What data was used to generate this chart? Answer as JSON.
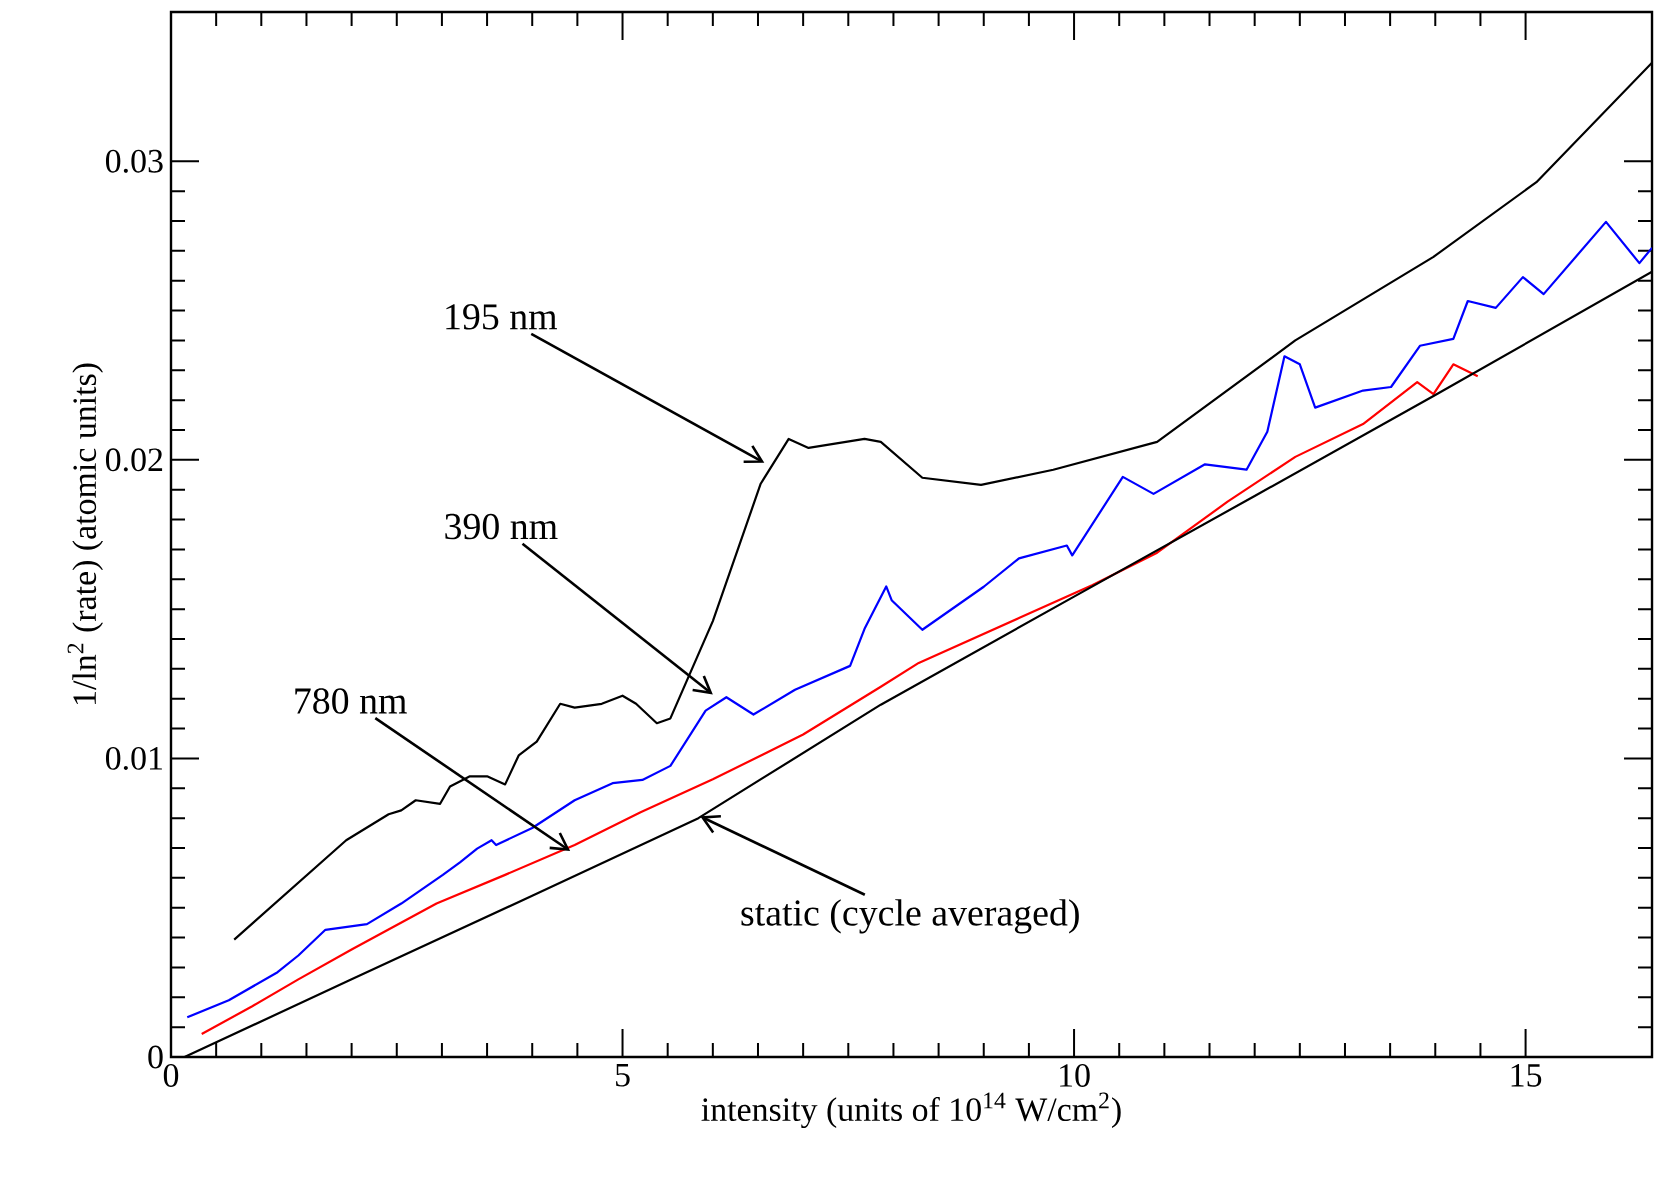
{
  "chart_data": {
    "type": "line",
    "xlabel": "intensity (units of 10$^{14}$ W/cm$^{2}$)",
    "ylabel": "1/ln$^{2}$ (rate)  (atomic units)",
    "xlim": [
      0,
      16.4
    ],
    "ylim": [
      0,
      0.035
    ],
    "xticks": [
      0,
      5,
      10,
      15
    ],
    "yticks": [
      0,
      0.01,
      0.02,
      0.03
    ],
    "grid": false,
    "marker": "none",
    "line_style": "solid",
    "series": [
      {
        "color": "#000000",
        "x": [
          0.7,
          1.94,
          2.41,
          2.55,
          2.71,
          2.98,
          3.09,
          3.31,
          3.5,
          3.7,
          3.85,
          4.05,
          4.31,
          4.47,
          4.77,
          5.0,
          5.15,
          5.38,
          5.53,
          6.0,
          6.53,
          6.84,
          7.06,
          7.68,
          7.86,
          8.32,
          8.97,
          9.77,
          10.92,
          12.45,
          13.98,
          15.12,
          16.4
        ],
        "values": [
          0.00393,
          0.00726,
          0.00813,
          0.00826,
          0.0086,
          0.00848,
          0.00906,
          0.0094,
          0.0094,
          0.00913,
          0.0101,
          0.01056,
          0.01183,
          0.0117,
          0.01183,
          0.0121,
          0.01183,
          0.01118,
          0.01134,
          0.0146,
          0.0192,
          0.0207,
          0.0204,
          0.0207,
          0.0206,
          0.0194,
          0.01916,
          0.01967,
          0.0206,
          0.024,
          0.0268,
          0.0293,
          0.0333
        ]
      },
      {
        "color": "#0000ff",
        "x": [
          0.18,
          0.64,
          1.18,
          1.41,
          1.71,
          2.17,
          2.55,
          3.01,
          3.2,
          3.39,
          3.55,
          3.6,
          4.0,
          4.47,
          4.89,
          5.22,
          5.53,
          5.92,
          6.15,
          6.45,
          6.91,
          7.52,
          7.68,
          7.92,
          7.98,
          8.32,
          9.0,
          9.39,
          9.92,
          9.98,
          10.54,
          10.88,
          11.45,
          11.91,
          12.14,
          12.33,
          12.5,
          12.67,
          13.2,
          13.51,
          13.83,
          14.2,
          14.36,
          14.67,
          14.97,
          15.2,
          15.89,
          16.26,
          16.4
        ],
        "values": [
          0.00133,
          0.0019,
          0.00284,
          0.0034,
          0.00426,
          0.00445,
          0.00514,
          0.0061,
          0.00652,
          0.00698,
          0.00726,
          0.0071,
          0.00767,
          0.0086,
          0.00917,
          0.00928,
          0.00975,
          0.0116,
          0.01205,
          0.01147,
          0.0123,
          0.0131,
          0.01434,
          0.01576,
          0.0153,
          0.01431,
          0.01575,
          0.0167,
          0.01713,
          0.0168,
          0.01943,
          0.01886,
          0.01985,
          0.01967,
          0.02094,
          0.02347,
          0.0232,
          0.02175,
          0.02232,
          0.02244,
          0.02382,
          0.02405,
          0.02532,
          0.02509,
          0.02612,
          0.02555,
          0.02797,
          0.02659,
          0.0271
        ]
      },
      {
        "color": "#ff0000",
        "x": [
          0.34,
          0.9,
          1.41,
          2.0,
          2.94,
          3.7,
          4.47,
          5.2,
          6.0,
          7.0,
          7.86,
          8.28,
          9.39,
          10.2,
          10.92,
          11.7,
          12.45,
          13.2,
          13.8,
          13.98,
          14.2,
          14.47
        ],
        "values": [
          0.00077,
          0.0017,
          0.0026,
          0.0036,
          0.00514,
          0.0061,
          0.0071,
          0.0082,
          0.0093,
          0.0108,
          0.0124,
          0.0132,
          0.0147,
          0.0158,
          0.01689,
          0.0186,
          0.0201,
          0.0212,
          0.0226,
          0.0222,
          0.0232,
          0.0228
        ]
      },
      {
        "color": "#000000",
        "x": [
          0.15,
          2,
          4,
          5.84,
          7.86,
          10,
          12,
          14,
          16.4
        ],
        "values": [
          0,
          0.0026,
          0.0054,
          0.008,
          0.0118,
          0.01542,
          0.01879,
          0.02217,
          0.0263
        ]
      }
    ],
    "annotations": [
      {
        "text": "195 nm",
        "x": 6.57,
        "y": 0.0199
      },
      {
        "text": "390 nm",
        "x": 6.0,
        "y": 0.01214
      },
      {
        "text": "780 nm",
        "x": 4.42,
        "y": 0.0069
      },
      {
        "text": "static (cycle averaged)",
        "x": 5.86,
        "y": 0.00806
      }
    ]
  }
}
